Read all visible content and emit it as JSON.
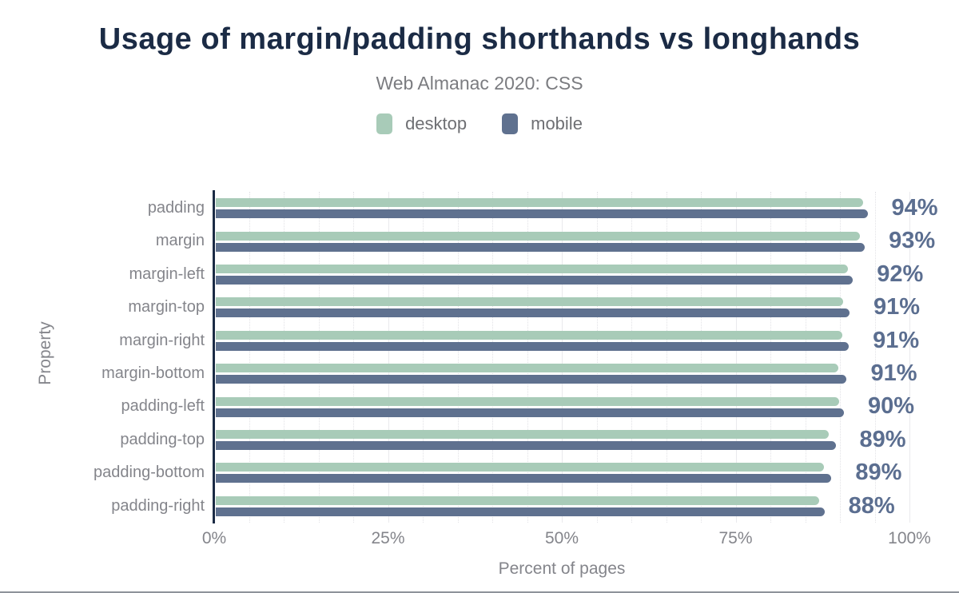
{
  "header": {
    "title": "Usage of margin/padding shorthands vs longhands",
    "subtitle": "Web Almanac 2020: CSS"
  },
  "legend": {
    "desktop": "desktop",
    "mobile": "mobile"
  },
  "axes": {
    "xlabel": "Percent of pages",
    "ylabel": "Property",
    "xticks": [
      "0%",
      "25%",
      "50%",
      "75%",
      "100%"
    ]
  },
  "colors": {
    "desktop_bar": "#a8cbb8",
    "mobile_bar": "#5f718f",
    "title_text": "#1b2b45",
    "value_label_text": "#5b6e90",
    "axis_line": "#1b2b45"
  },
  "chart_data": {
    "type": "bar",
    "orientation": "horizontal",
    "title": "Usage of margin/padding shorthands vs longhands",
    "subtitle": "Web Almanac 2020: CSS",
    "xlabel": "Percent of pages",
    "ylabel": "Property",
    "xlim": [
      0,
      100
    ],
    "xticks_percent": [
      0,
      25,
      50,
      75,
      100
    ],
    "xtick_labels": [
      "0%",
      "25%",
      "50%",
      "75%",
      "100%"
    ],
    "grid": {
      "minor_step_percent": 5,
      "major_step_percent": 25
    },
    "legend_position": "top",
    "categories": [
      "padding",
      "margin",
      "margin-left",
      "margin-top",
      "margin-right",
      "margin-bottom",
      "padding-left",
      "padding-top",
      "padding-bottom",
      "padding-right"
    ],
    "series": [
      {
        "name": "desktop",
        "color": "#a8cbb8",
        "values": [
          93.2,
          92.7,
          91.0,
          90.3,
          90.2,
          89.6,
          89.7,
          88.2,
          87.5,
          86.8
        ]
      },
      {
        "name": "mobile",
        "color": "#5f718f",
        "values": [
          93.8,
          93.4,
          91.7,
          91.2,
          91.1,
          90.8,
          90.4,
          89.2,
          88.6,
          87.6
        ]
      }
    ],
    "value_labels": [
      "94%",
      "93%",
      "92%",
      "91%",
      "91%",
      "91%",
      "90%",
      "89%",
      "89%",
      "88%"
    ]
  }
}
